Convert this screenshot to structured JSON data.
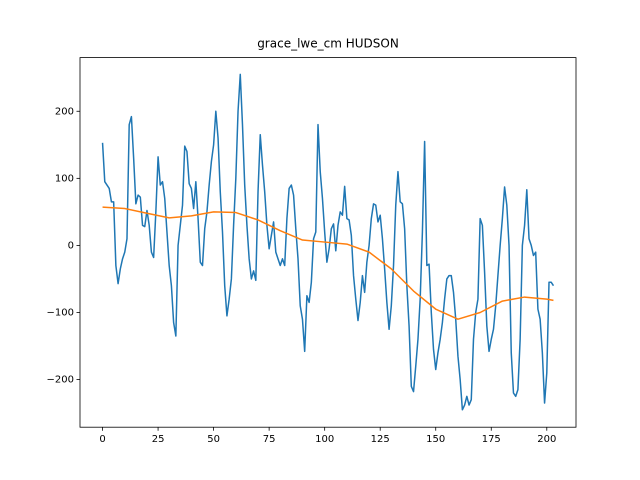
{
  "chart_data": {
    "type": "line",
    "title": "grace_lwe_cm HUDSON",
    "xlim": [
      -10.15,
      213.15
    ],
    "ylim": [
      -271,
      280
    ],
    "xticks": [
      0,
      25,
      50,
      75,
      100,
      125,
      150,
      175,
      200
    ],
    "yticks": [
      {
        "value": -200,
        "label": "−200"
      },
      {
        "value": -100,
        "label": "−100"
      },
      0,
      100,
      200
    ],
    "series": [
      {
        "color": "#1f77b4",
        "x": [
          0,
          1,
          2,
          3,
          4,
          5,
          6,
          7,
          8,
          9,
          10,
          11,
          12,
          13,
          14,
          15,
          16,
          17,
          18,
          19,
          20,
          21,
          22,
          23,
          24,
          25,
          26,
          27,
          28,
          29,
          30,
          31,
          32,
          33,
          34,
          35,
          36,
          37,
          38,
          39,
          40,
          41,
          42,
          43,
          44,
          45,
          46,
          47,
          48,
          49,
          50,
          51,
          52,
          53,
          54,
          55,
          56,
          57,
          58,
          59,
          60,
          61,
          62,
          63,
          64,
          65,
          66,
          67,
          68,
          69,
          70,
          71,
          72,
          73,
          74,
          75,
          76,
          77,
          78,
          79,
          80,
          81,
          82,
          83,
          84,
          85,
          86,
          87,
          88,
          89,
          90,
          91,
          92,
          93,
          94,
          95,
          96,
          97,
          98,
          99,
          100,
          101,
          102,
          103,
          104,
          105,
          106,
          107,
          108,
          109,
          110,
          111,
          112,
          113,
          114,
          115,
          116,
          117,
          118,
          119,
          120,
          121,
          122,
          123,
          124,
          125,
          126,
          127,
          128,
          129,
          130,
          131,
          132,
          133,
          134,
          135,
          136,
          137,
          138,
          139,
          140,
          141,
          142,
          143,
          144,
          145,
          146,
          147,
          148,
          149,
          150,
          151,
          152,
          153,
          154,
          155,
          156,
          157,
          158,
          159,
          160,
          161,
          162,
          163,
          164,
          165,
          166,
          167,
          168,
          169,
          170,
          171,
          172,
          173,
          174,
          175,
          176,
          177,
          178,
          179,
          180,
          181,
          182,
          183,
          184,
          185,
          186,
          187,
          188,
          189,
          190,
          191,
          192,
          193,
          194,
          195,
          196,
          197,
          198,
          199,
          200,
          201,
          202,
          203
        ],
        "values": [
          153,
          95,
          90,
          85,
          65,
          65,
          -30,
          -57,
          -35,
          -20,
          -10,
          10,
          180,
          192,
          130,
          62,
          75,
          72,
          30,
          28,
          52,
          30,
          -10,
          -18,
          50,
          132,
          90,
          95,
          70,
          20,
          -30,
          -60,
          -115,
          -135,
          0,
          30,
          60,
          148,
          140,
          92,
          85,
          55,
          95,
          40,
          -25,
          -30,
          25,
          50,
          90,
          125,
          150,
          200,
          160,
          80,
          20,
          -60,
          -105,
          -80,
          -50,
          30,
          100,
          200,
          255,
          180,
          90,
          30,
          -20,
          -50,
          -38,
          -52,
          80,
          165,
          120,
          80,
          30,
          -5,
          15,
          35,
          -10,
          -20,
          -30,
          -20,
          -30,
          40,
          85,
          90,
          75,
          25,
          -20,
          -90,
          -110,
          -158,
          -75,
          -85,
          -55,
          10,
          20,
          180,
          110,
          70,
          20,
          -25,
          -5,
          25,
          32,
          -8,
          30,
          50,
          45,
          88,
          40,
          38,
          15,
          -45,
          -80,
          -112,
          -85,
          -45,
          -70,
          -25,
          0,
          40,
          62,
          60,
          35,
          45,
          10,
          -35,
          -85,
          -125,
          -90,
          -30,
          60,
          110,
          65,
          62,
          25,
          -60,
          -120,
          -210,
          -218,
          -180,
          -140,
          -80,
          20,
          155,
          -30,
          -28,
          -100,
          -155,
          -185,
          -160,
          -140,
          -115,
          -80,
          -50,
          -45,
          -45,
          -70,
          -110,
          -165,
          -200,
          -245,
          -238,
          -225,
          -238,
          -230,
          -140,
          -100,
          -80,
          40,
          30,
          -40,
          -120,
          -158,
          -140,
          -125,
          -90,
          -45,
          0,
          40,
          87,
          60,
          0,
          -160,
          -220,
          -225,
          -215,
          -140,
          0,
          30,
          83,
          10,
          0,
          -15,
          -10,
          -95,
          -110,
          -160,
          -235,
          -190,
          -55,
          -55,
          -60
        ]
      },
      {
        "color": "#ff7f0e",
        "x": [
          0,
          10,
          20,
          30,
          40,
          50,
          60,
          70,
          80,
          90,
          100,
          110,
          120,
          130,
          140,
          150,
          160,
          170,
          180,
          190,
          200,
          203
        ],
        "values": [
          57,
          55,
          48,
          41,
          44,
          50,
          49,
          38,
          22,
          8,
          5,
          2,
          -10,
          -35,
          -68,
          -95,
          -110,
          -100,
          -83,
          -77,
          -80,
          -82
        ]
      }
    ]
  }
}
